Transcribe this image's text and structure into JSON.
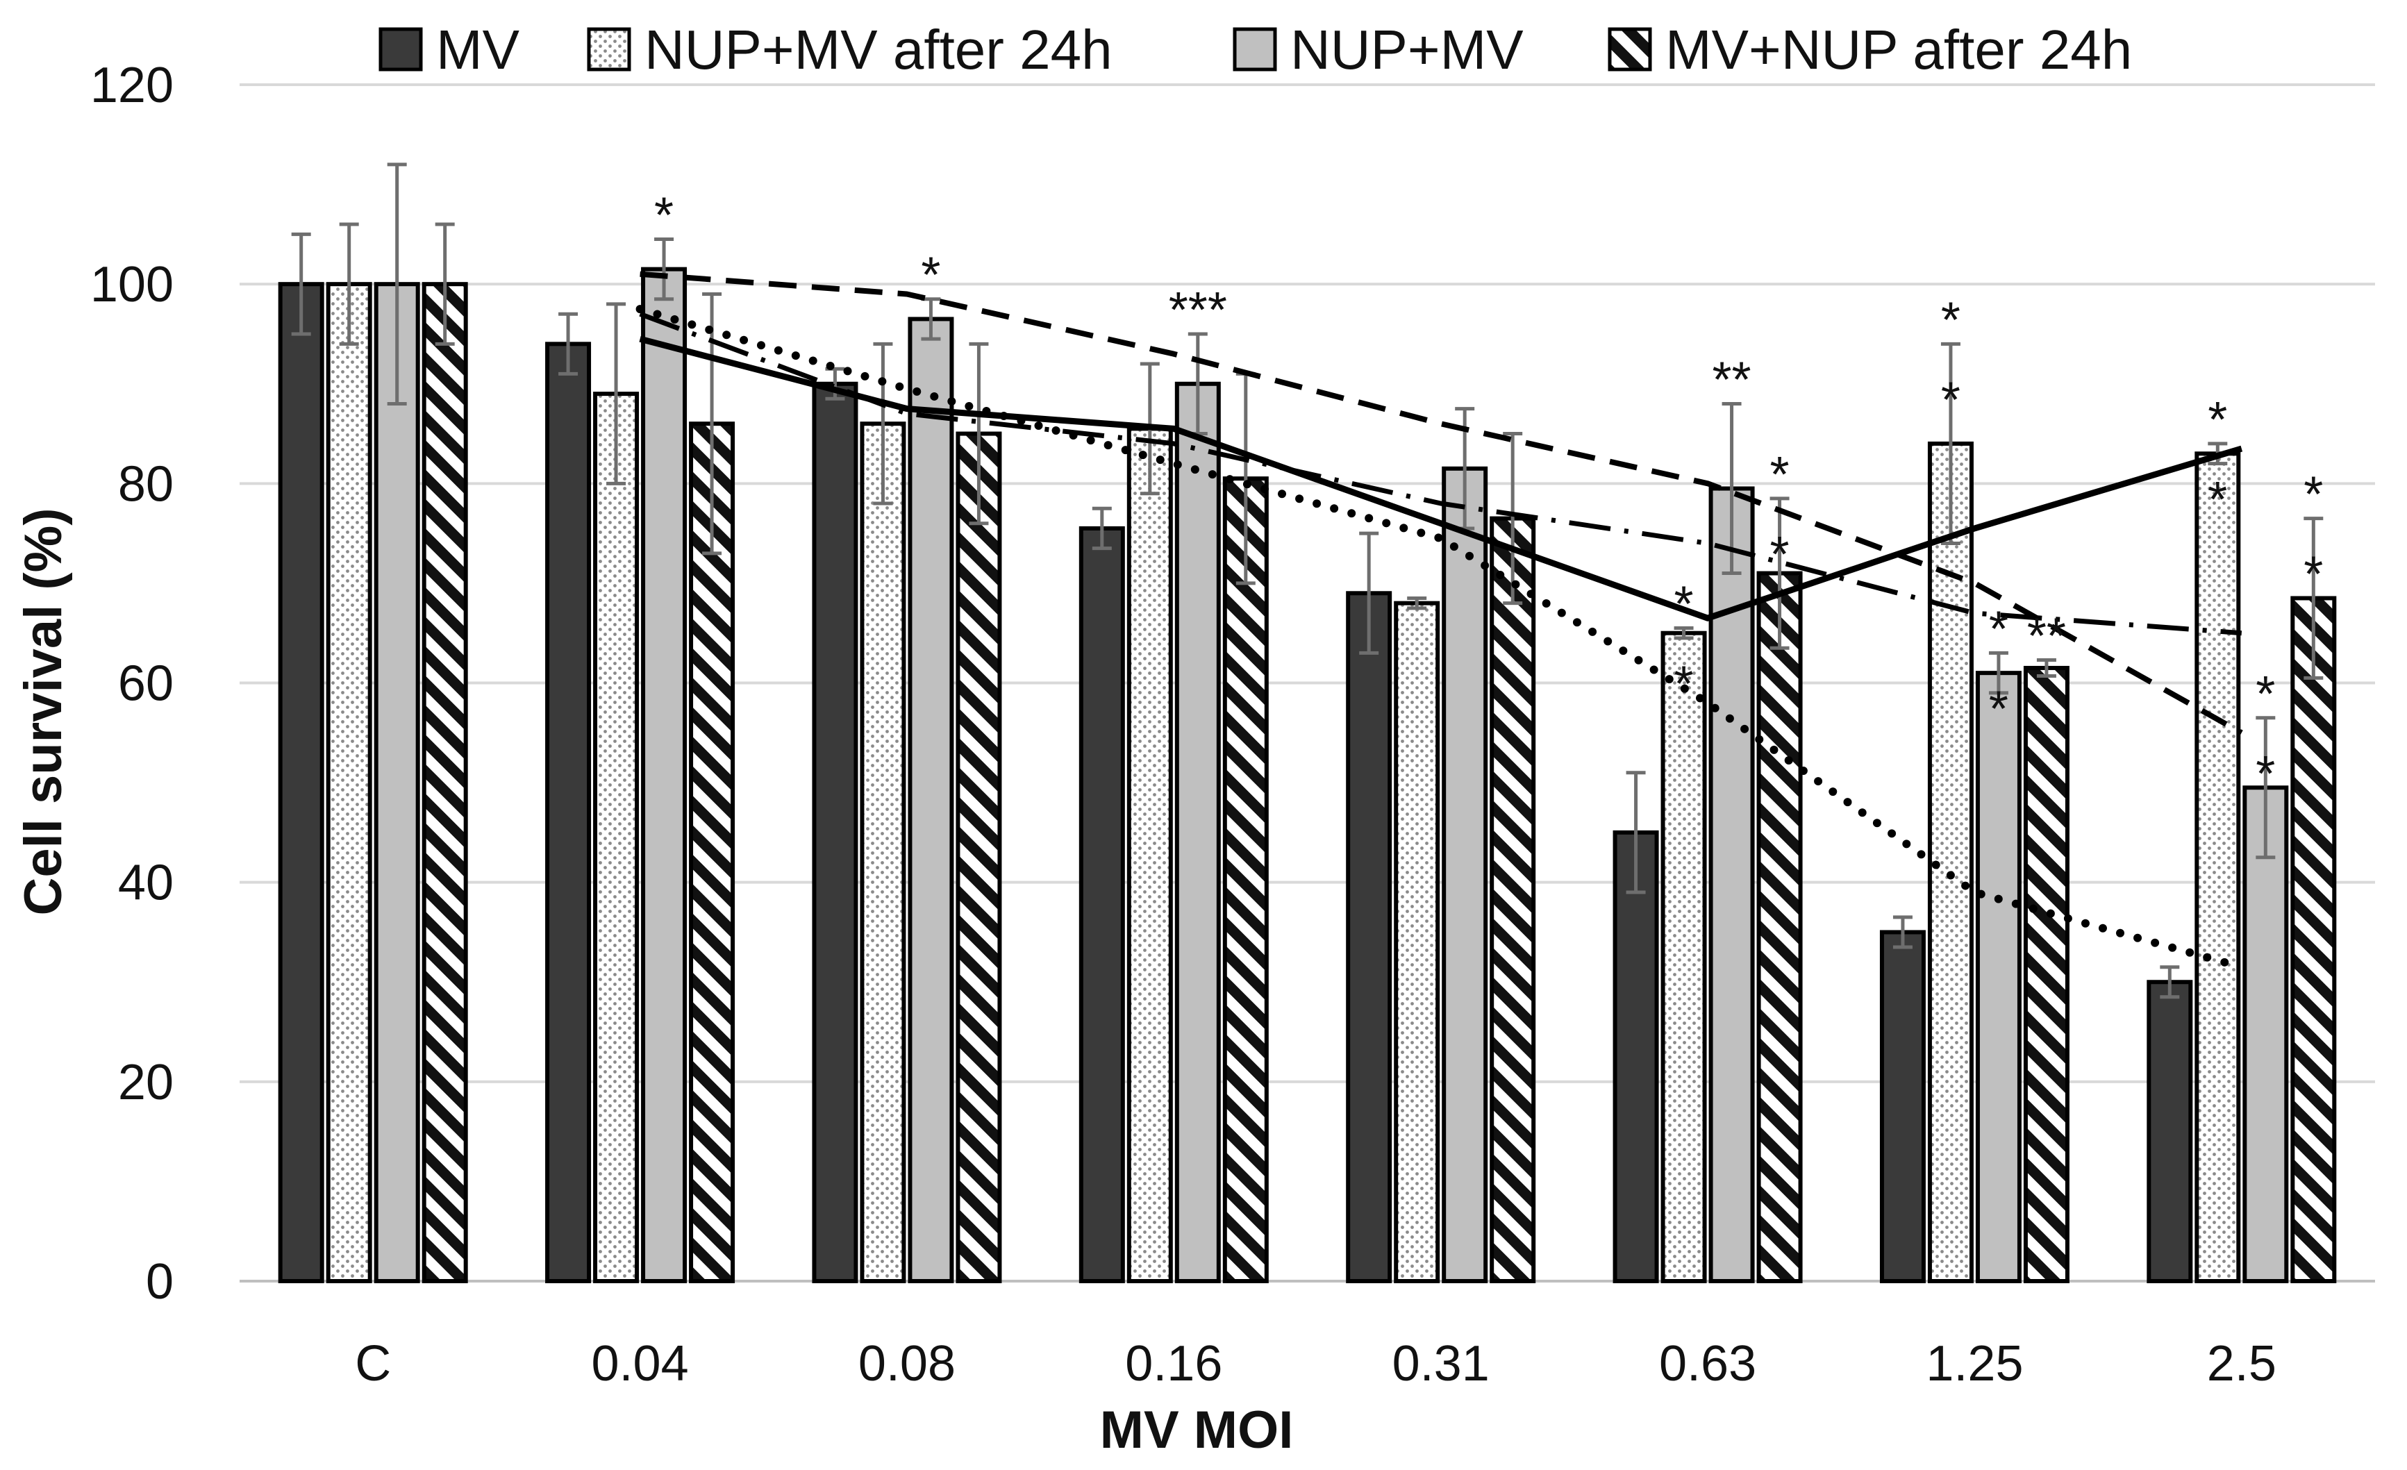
{
  "chart_data": {
    "type": "bar",
    "title": "",
    "xlabel": "MV MOI",
    "ylabel": "Cell survival (%)",
    "ylim": [
      0,
      120
    ],
    "yticks": [
      0,
      20,
      40,
      60,
      80,
      100,
      120
    ],
    "grid": true,
    "legend_position": "top",
    "categories": [
      "C",
      "0.04",
      "0.08",
      "0.16",
      "0.31",
      "0.63",
      "1.25",
      "2.5"
    ],
    "series": [
      {
        "name": "MV",
        "pattern": "solid-dark",
        "color": "#3a3a3a",
        "values": [
          100,
          94,
          90,
          75.5,
          69,
          45,
          35,
          30
        ],
        "errors": [
          5,
          3,
          1.5,
          2,
          6,
          6,
          1.5,
          1.5
        ]
      },
      {
        "name": "NUP+MV after 24h",
        "pattern": "dots",
        "color": "#ffffff",
        "values": [
          100,
          89,
          86,
          85.5,
          68,
          65,
          84,
          83
        ],
        "errors": [
          6,
          9,
          8,
          6.5,
          0.5,
          0.5,
          10,
          1
        ]
      },
      {
        "name": "NUP+MV",
        "pattern": "solid-light",
        "color": "#c0c0c0",
        "values": [
          100,
          101.5,
          96.5,
          90,
          81.5,
          79.5,
          61,
          49.5
        ],
        "errors": [
          12,
          3,
          2,
          5,
          6,
          8.5,
          2,
          7
        ]
      },
      {
        "name": "MV+NUP after 24h",
        "pattern": "diagonal-stripes",
        "color": "#111111",
        "values": [
          100,
          86,
          85,
          80.5,
          76.5,
          71,
          61.5,
          68.5
        ],
        "errors": [
          6,
          13,
          9,
          10.5,
          8.5,
          7.5,
          0.8,
          8
        ]
      }
    ],
    "trendlines": [
      {
        "series": "MV",
        "style": "dotted",
        "from_category": 1,
        "values": [
          97.5,
          89.5,
          82,
          74.5,
          58,
          39,
          31.5
        ]
      },
      {
        "series": "NUP+MV after 24h",
        "style": "solid",
        "from_category": 1,
        "values": [
          94.5,
          87.5,
          85.5,
          76,
          66.5,
          75.5,
          83.5
        ]
      },
      {
        "series": "NUP+MV",
        "style": "dashed",
        "from_category": 1,
        "values": [
          101,
          99,
          93,
          86,
          80,
          70,
          55
        ]
      },
      {
        "series": "MV+NUP after 24h",
        "style": "dash-dot",
        "from_category": 1,
        "values": [
          97,
          87,
          84,
          78,
          74,
          67,
          65
        ]
      }
    ],
    "annotations": [
      {
        "category": 1,
        "series": 2,
        "text": "*"
      },
      {
        "category": 2,
        "series": 2,
        "text": "*"
      },
      {
        "category": 3,
        "series": 2,
        "text": "***"
      },
      {
        "category": 5,
        "series": 1,
        "text": "*"
      },
      {
        "category": 5,
        "series": 1,
        "text": "*"
      },
      {
        "category": 5,
        "series": 2,
        "text": "**"
      },
      {
        "category": 5,
        "series": 3,
        "text": "*"
      },
      {
        "category": 5,
        "series": 3,
        "text": "*"
      },
      {
        "category": 6,
        "series": 1,
        "text": "*"
      },
      {
        "category": 6,
        "series": 1,
        "text": "*"
      },
      {
        "category": 6,
        "series": 2,
        "text": "*"
      },
      {
        "category": 6,
        "series": 2,
        "text": "*"
      },
      {
        "category": 6,
        "series": 3,
        "text": "**"
      },
      {
        "category": 7,
        "series": 1,
        "text": "*"
      },
      {
        "category": 7,
        "series": 1,
        "text": "*"
      },
      {
        "category": 7,
        "series": 2,
        "text": "*"
      },
      {
        "category": 7,
        "series": 2,
        "text": "*"
      },
      {
        "category": 7,
        "series": 3,
        "text": "*"
      },
      {
        "category": 7,
        "series": 3,
        "text": "*"
      }
    ]
  }
}
